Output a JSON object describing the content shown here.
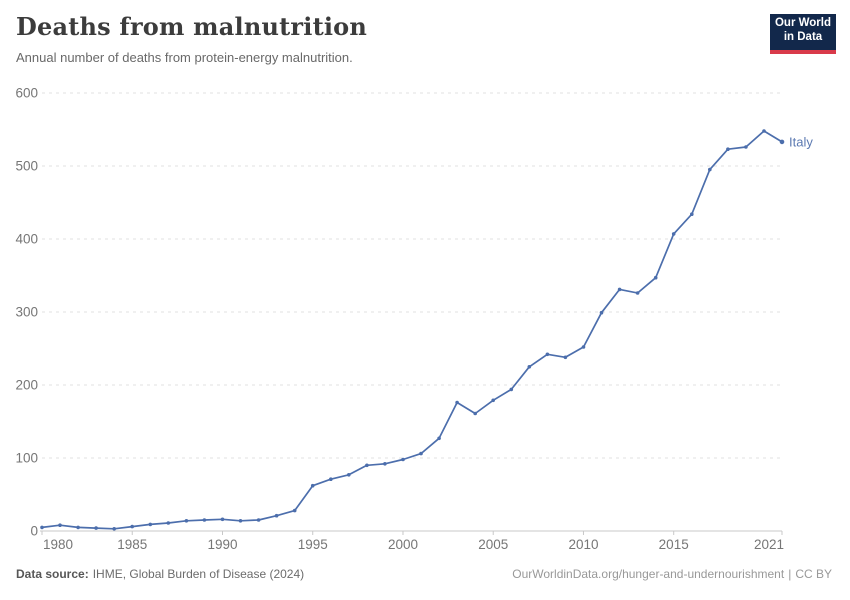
{
  "header": {
    "title": "Deaths from malnutrition",
    "subtitle": "Annual number of deaths from protein-energy malnutrition.",
    "logo": {
      "line1": "Our World",
      "line2": "in Data"
    }
  },
  "chart_data": {
    "type": "line",
    "title": "Deaths from malnutrition",
    "subtitle": "Annual number of deaths from protein-energy malnutrition.",
    "xlabel": "",
    "ylabel": "",
    "xlim": [
      1980,
      2021
    ],
    "ylim": [
      0,
      600
    ],
    "x_ticks": [
      1980,
      1985,
      1990,
      1995,
      2000,
      2005,
      2010,
      2015,
      2021
    ],
    "y_ticks": [
      0,
      100,
      200,
      300,
      400,
      500,
      600
    ],
    "grid": "horizontal-dashed",
    "legend_position": "end-of-line-label",
    "series": [
      {
        "name": "Italy",
        "color": "#4C6EAC",
        "label_color": "#5C7AB2",
        "x": [
          1980,
          1981,
          1982,
          1983,
          1984,
          1985,
          1986,
          1987,
          1988,
          1989,
          1990,
          1991,
          1992,
          1993,
          1994,
          1995,
          1996,
          1997,
          1998,
          1999,
          2000,
          2001,
          2002,
          2003,
          2004,
          2005,
          2006,
          2007,
          2008,
          2009,
          2010,
          2011,
          2012,
          2013,
          2014,
          2015,
          2016,
          2017,
          2018,
          2019,
          2020,
          2021
        ],
        "values": [
          5,
          8,
          5,
          4,
          3,
          6,
          9,
          11,
          14,
          15,
          16,
          14,
          15,
          21,
          28,
          62,
          71,
          77,
          90,
          92,
          98,
          106,
          127,
          176,
          161,
          179,
          194,
          225,
          242,
          238,
          252,
          299,
          331,
          326,
          347,
          407,
          434,
          495,
          523,
          526,
          548,
          533
        ]
      }
    ]
  },
  "footer": {
    "source_label": "Data source:",
    "source_text": "IHME, Global Burden of Disease (2024)",
    "link_text": "OurWorldinData.org/hunger-and-undernourishment",
    "divider": "|",
    "license_text": "CC BY"
  },
  "colors": {
    "line": "#4C6EAC",
    "entity_label": "#5C7AB2",
    "grid": "#E1E1E1",
    "axis": "#C8C8C8",
    "tick_text": "#767676",
    "logo_bg": "#12284B",
    "logo_red": "#D93A4A"
  }
}
